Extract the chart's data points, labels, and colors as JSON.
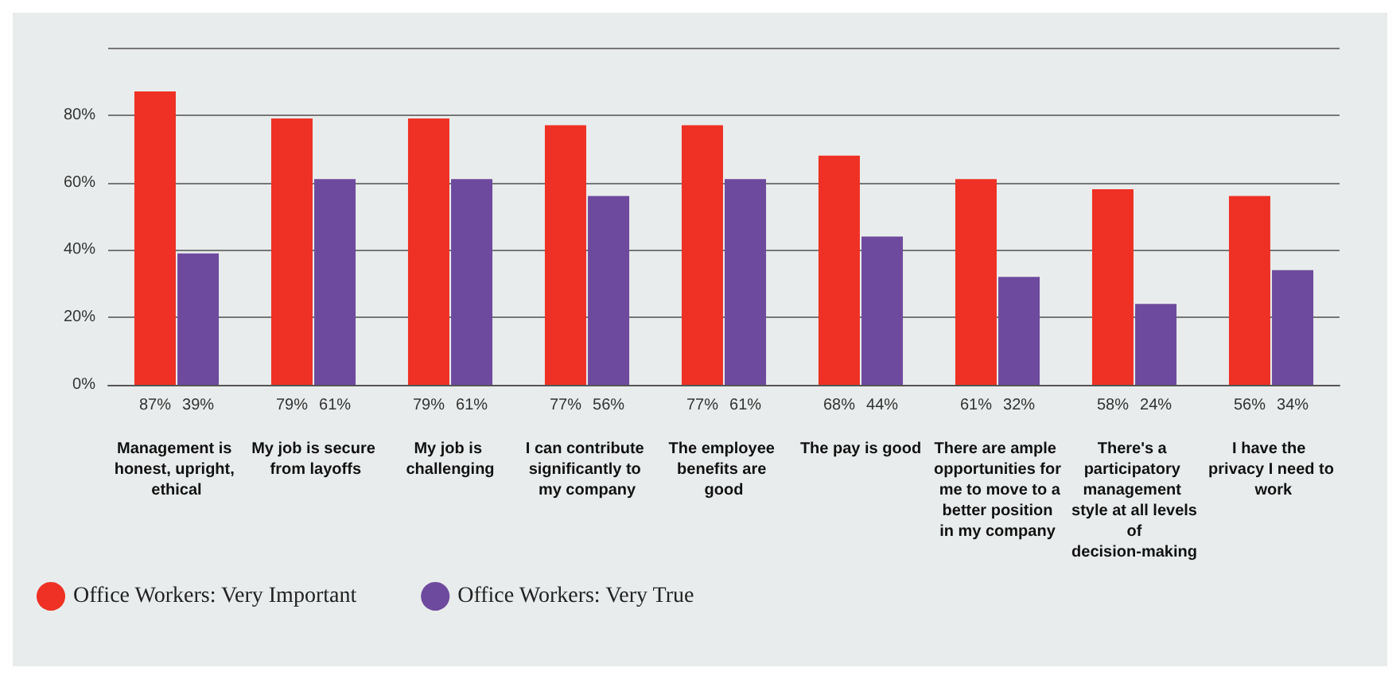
{
  "chart_data": {
    "type": "bar",
    "categories": [
      "Management is honest, upright, ethical",
      "My job is secure from layoffs",
      "My job is challenging",
      "I can contribute significantly to my company",
      "The employee benefits are good",
      "The pay is good",
      "There are ample opportunities for me to move to a better position in my company",
      "There's a participatory management style at all levels of decision-making",
      "I have the privacy I need to work"
    ],
    "series": [
      {
        "name": "Office Workers: Very Important",
        "color": "#ee3124",
        "values": [
          87,
          79,
          79,
          77,
          77,
          68,
          61,
          58,
          56
        ],
        "value_labels": [
          "87%",
          "79%",
          "79%",
          "77%",
          "77%",
          "68%",
          "61%",
          "58%",
          "56%"
        ]
      },
      {
        "name": "Office Workers: Very True",
        "color": "#6e4a9e",
        "values": [
          39,
          61,
          61,
          56,
          61,
          44,
          32,
          24,
          34
        ],
        "value_labels": [
          "39%",
          "61%",
          "61%",
          "56%",
          "61%",
          "44%",
          "32%",
          "24%",
          "34%"
        ]
      }
    ],
    "ylim": [
      0,
      100
    ],
    "yticks": [
      {
        "value": 0,
        "label": "0%"
      },
      {
        "value": 20,
        "label": "20%"
      },
      {
        "value": 40,
        "label": "40%"
      },
      {
        "value": 60,
        "label": "60%"
      },
      {
        "value": 80,
        "label": "80%"
      },
      {
        "value": 100,
        "label": null
      }
    ],
    "grid": "y",
    "legend": "bottom left"
  }
}
